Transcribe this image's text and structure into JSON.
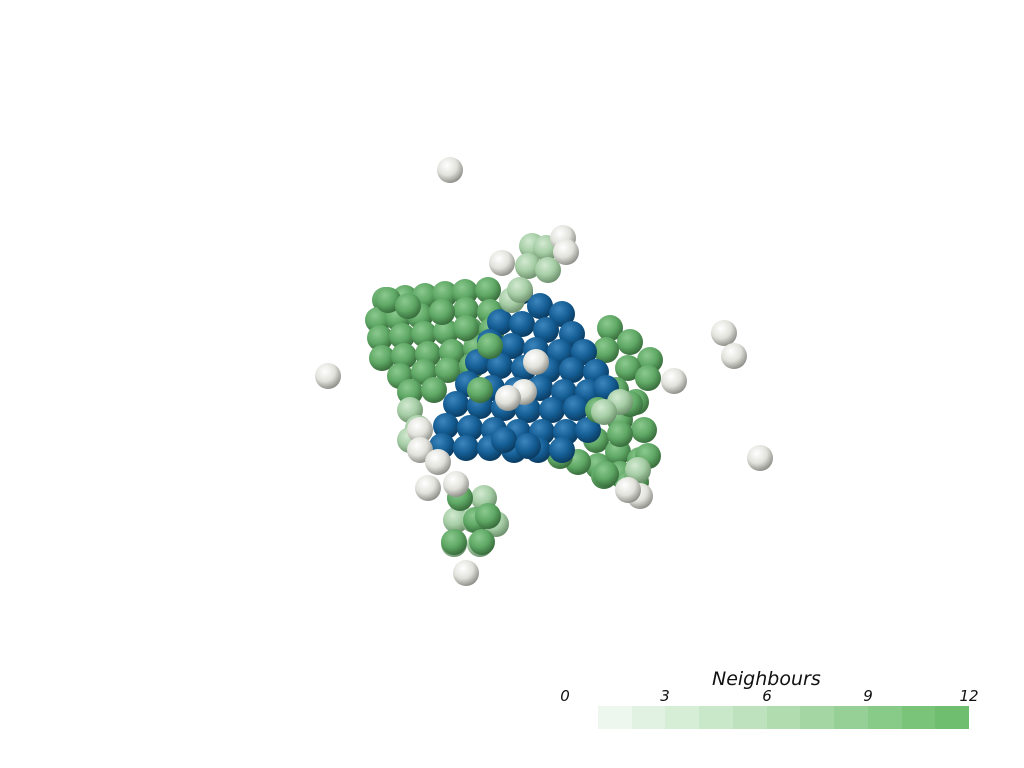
{
  "scene": {
    "background": "#ffffff",
    "sphere_colors": {
      "blue": "#125a8e",
      "green": "#5fa865",
      "light_green": "#a5cda5",
      "white": "#e6e6e0"
    }
  },
  "legend": {
    "title": "Neighbours",
    "ticks": [
      "0",
      "3",
      "6",
      "9",
      "12"
    ],
    "range": [
      0,
      12
    ],
    "colors": [
      "#eef7ee",
      "#e2f2e2",
      "#d6edd6",
      "#c9e7c9",
      "#bde2bd",
      "#b0dcb0",
      "#a3d6a3",
      "#96d096",
      "#88ca88",
      "#7ac47a",
      "#6fbe6f"
    ]
  }
}
